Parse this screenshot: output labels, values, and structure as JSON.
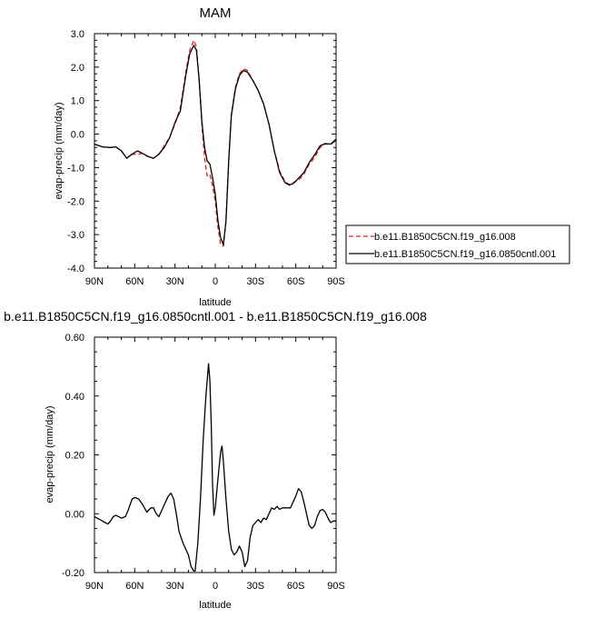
{
  "chart_data": [
    {
      "type": "line",
      "title": "MAM",
      "xlabel": "latitude",
      "ylabel": "evap-precip (mm/day)",
      "xlim": [
        90,
        -90
      ],
      "ylim": [
        -4.0,
        3.0
      ],
      "x_ticks": [
        90,
        60,
        30,
        0,
        -30,
        -60,
        -90
      ],
      "x_tick_labels": [
        "90N",
        "60N",
        "30N",
        "0",
        "30S",
        "60S",
        "90S"
      ],
      "y_ticks": [
        -4,
        -3,
        -2,
        -1,
        0,
        1,
        2,
        3
      ],
      "y_tick_labels": [
        "-4.0",
        "-3.0",
        "-2.0",
        "-1.0",
        "0.0",
        "1.0",
        "2.0",
        "3.0"
      ],
      "grid": false,
      "legend": "right",
      "series": [
        {
          "name": "b.e11.B1850C5CN.f19_g16.008",
          "color": "#e8201a",
          "dash": "dashed",
          "points": [
            [
              90,
              -0.3
            ],
            [
              84,
              -0.38
            ],
            [
              78,
              -0.4
            ],
            [
              74,
              -0.38
            ],
            [
              70,
              -0.5
            ],
            [
              66,
              -0.72
            ],
            [
              62,
              -0.6
            ],
            [
              58,
              -0.6
            ],
            [
              54,
              -0.58
            ],
            [
              50,
              -0.67
            ],
            [
              46,
              -0.72
            ],
            [
              42,
              -0.6
            ],
            [
              38,
              -0.35
            ],
            [
              34,
              -0.1
            ],
            [
              30,
              0.3
            ],
            [
              26,
              0.8
            ],
            [
              22,
              1.85
            ],
            [
              19,
              2.5
            ],
            [
              16,
              2.8
            ],
            [
              14,
              2.6
            ],
            [
              12,
              1.6
            ],
            [
              10,
              0.3
            ],
            [
              8,
              -0.7
            ],
            [
              6,
              -1.25
            ],
            [
              4,
              -1.2
            ],
            [
              2,
              -1.55
            ],
            [
              0,
              -2.0
            ],
            [
              -2,
              -2.8
            ],
            [
              -4,
              -3.3
            ],
            [
              -6,
              -3.35
            ],
            [
              -8,
              -2.6
            ],
            [
              -10,
              -0.8
            ],
            [
              -12,
              0.6
            ],
            [
              -15,
              1.4
            ],
            [
              -18,
              1.8
            ],
            [
              -21,
              1.95
            ],
            [
              -24,
              1.9
            ],
            [
              -28,
              1.6
            ],
            [
              -32,
              1.3
            ],
            [
              -36,
              0.9
            ],
            [
              -40,
              0.3
            ],
            [
              -44,
              -0.5
            ],
            [
              -48,
              -1.1
            ],
            [
              -52,
              -1.42
            ],
            [
              -55,
              -1.5
            ],
            [
              -58,
              -1.45
            ],
            [
              -62,
              -1.38
            ],
            [
              -66,
              -1.2
            ],
            [
              -70,
              -0.9
            ],
            [
              -74,
              -0.7
            ],
            [
              -78,
              -0.4
            ],
            [
              -82,
              -0.3
            ],
            [
              -86,
              -0.3
            ],
            [
              -90,
              -0.2
            ]
          ]
        },
        {
          "name": "b.e11.B1850C5CN.f19_g16.0850cntl.001",
          "color": "#000000",
          "dash": "solid",
          "points": [
            [
              90,
              -0.3
            ],
            [
              84,
              -0.38
            ],
            [
              78,
              -0.4
            ],
            [
              74,
              -0.38
            ],
            [
              70,
              -0.5
            ],
            [
              66,
              -0.72
            ],
            [
              62,
              -0.6
            ],
            [
              58,
              -0.5
            ],
            [
              54,
              -0.58
            ],
            [
              50,
              -0.67
            ],
            [
              46,
              -0.72
            ],
            [
              42,
              -0.6
            ],
            [
              38,
              -0.4
            ],
            [
              34,
              -0.1
            ],
            [
              30,
              0.35
            ],
            [
              26,
              0.7
            ],
            [
              22,
              1.75
            ],
            [
              19,
              2.4
            ],
            [
              16,
              2.65
            ],
            [
              14,
              2.5
            ],
            [
              12,
              1.6
            ],
            [
              10,
              0.4
            ],
            [
              8,
              -0.4
            ],
            [
              6,
              -0.8
            ],
            [
              4,
              -0.9
            ],
            [
              2,
              -1.3
            ],
            [
              0,
              -1.8
            ],
            [
              -2,
              -2.6
            ],
            [
              -4,
              -3.1
            ],
            [
              -6,
              -3.3
            ],
            [
              -8,
              -2.6
            ],
            [
              -10,
              -0.8
            ],
            [
              -12,
              0.55
            ],
            [
              -15,
              1.35
            ],
            [
              -18,
              1.75
            ],
            [
              -21,
              1.9
            ],
            [
              -24,
              1.85
            ],
            [
              -28,
              1.6
            ],
            [
              -32,
              1.3
            ],
            [
              -36,
              0.9
            ],
            [
              -40,
              0.3
            ],
            [
              -44,
              -0.5
            ],
            [
              -48,
              -1.15
            ],
            [
              -52,
              -1.45
            ],
            [
              -55,
              -1.52
            ],
            [
              -58,
              -1.48
            ],
            [
              -62,
              -1.32
            ],
            [
              -66,
              -1.15
            ],
            [
              -70,
              -0.85
            ],
            [
              -74,
              -0.62
            ],
            [
              -78,
              -0.35
            ],
            [
              -82,
              -0.28
            ],
            [
              -86,
              -0.3
            ],
            [
              -90,
              -0.15
            ]
          ]
        }
      ]
    },
    {
      "type": "line",
      "title": "b.e11.B1850C5CN.f19_g16.0850cntl.001 - b.e11.B1850C5CN.f19_g16.008",
      "xlabel": "latitude",
      "ylabel": "evap-precip (mm/day)",
      "xlim": [
        90,
        -90
      ],
      "ylim": [
        -0.2,
        0.6
      ],
      "x_ticks": [
        90,
        60,
        30,
        0,
        -30,
        -60,
        -90
      ],
      "x_tick_labels": [
        "90N",
        "60N",
        "30N",
        "0",
        "30S",
        "60S",
        "90S"
      ],
      "y_ticks": [
        -0.2,
        0,
        0.2,
        0.4,
        0.6
      ],
      "y_tick_labels": [
        "-0.20",
        "0.00",
        "0.20",
        "0.40",
        "0.60"
      ],
      "grid": false,
      "legend": "none",
      "series": [
        {
          "color": "#000000",
          "dash": "solid",
          "points": [
            [
              90,
              -0.01
            ],
            [
              86,
              -0.02
            ],
            [
              82,
              -0.03
            ],
            [
              80,
              -0.035
            ],
            [
              78,
              -0.025
            ],
            [
              76,
              -0.01
            ],
            [
              74,
              -0.005
            ],
            [
              70,
              -0.015
            ],
            [
              67,
              -0.01
            ],
            [
              65,
              0.01
            ],
            [
              62,
              0.05
            ],
            [
              60,
              0.055
            ],
            [
              57,
              0.05
            ],
            [
              54,
              0.03
            ],
            [
              51,
              0.005
            ],
            [
              48,
              0.02
            ],
            [
              46,
              0.02
            ],
            [
              44,
              0.0
            ],
            [
              42,
              -0.01
            ],
            [
              40,
              0.01
            ],
            [
              38,
              0.03
            ],
            [
              35,
              0.06
            ],
            [
              33,
              0.07
            ],
            [
              31,
              0.05
            ],
            [
              29,
              0.0
            ],
            [
              27,
              -0.06
            ],
            [
              24,
              -0.1
            ],
            [
              22,
              -0.12
            ],
            [
              20,
              -0.14
            ],
            [
              18,
              -0.18
            ],
            [
              16,
              -0.195
            ],
            [
              15,
              -0.195
            ],
            [
              13,
              -0.1
            ],
            [
              11,
              0.05
            ],
            [
              9,
              0.25
            ],
            [
              7,
              0.4
            ],
            [
              5,
              0.51
            ],
            [
              4,
              0.45
            ],
            [
              3,
              0.3
            ],
            [
              2,
              0.1
            ],
            [
              1,
              -0.005
            ],
            [
              0,
              0.02
            ],
            [
              -2,
              0.12
            ],
            [
              -4,
              0.21
            ],
            [
              -5,
              0.23
            ],
            [
              -6,
              0.18
            ],
            [
              -8,
              0.05
            ],
            [
              -10,
              -0.06
            ],
            [
              -12,
              -0.12
            ],
            [
              -14,
              -0.14
            ],
            [
              -16,
              -0.13
            ],
            [
              -18,
              -0.11
            ],
            [
              -20,
              -0.13
            ],
            [
              -22,
              -0.18
            ],
            [
              -24,
              -0.16
            ],
            [
              -26,
              -0.08
            ],
            [
              -28,
              -0.04
            ],
            [
              -30,
              -0.03
            ],
            [
              -32,
              -0.02
            ],
            [
              -34,
              -0.03
            ],
            [
              -36,
              -0.015
            ],
            [
              -38,
              -0.02
            ],
            [
              -40,
              0.0
            ],
            [
              -42,
              0.02
            ],
            [
              -44,
              0.015
            ],
            [
              -46,
              0.025
            ],
            [
              -48,
              0.015
            ],
            [
              -50,
              0.02
            ],
            [
              -52,
              0.02
            ],
            [
              -54,
              0.02
            ],
            [
              -56,
              0.02
            ],
            [
              -58,
              0.04
            ],
            [
              -60,
              0.06
            ],
            [
              -62,
              0.085
            ],
            [
              -64,
              0.075
            ],
            [
              -66,
              0.04
            ],
            [
              -68,
              0.0
            ],
            [
              -70,
              -0.04
            ],
            [
              -72,
              -0.05
            ],
            [
              -74,
              -0.04
            ],
            [
              -76,
              -0.01
            ],
            [
              -78,
              0.01
            ],
            [
              -80,
              0.015
            ],
            [
              -82,
              0.005
            ],
            [
              -84,
              -0.015
            ],
            [
              -86,
              -0.03
            ],
            [
              -88,
              -0.025
            ],
            [
              -90,
              -0.025
            ]
          ]
        }
      ]
    }
  ]
}
